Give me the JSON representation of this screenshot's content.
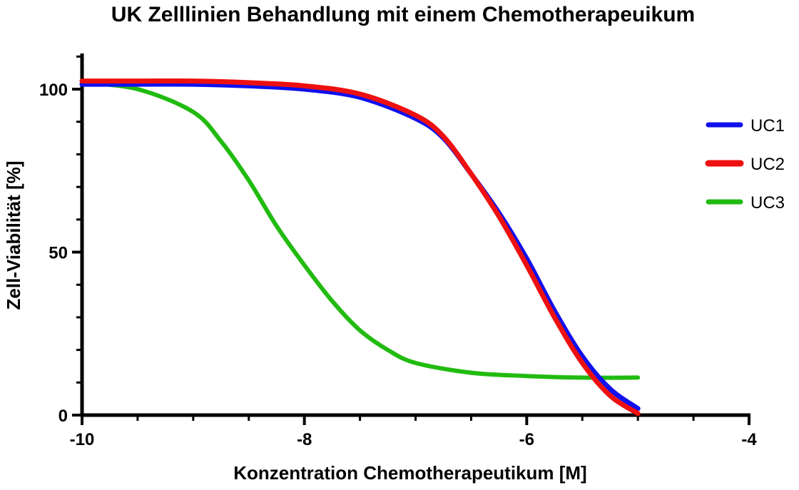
{
  "chart_data": {
    "type": "line",
    "title": "UK Zelllinien Behandlung mit einem Chemotherapeuikum",
    "xlabel": "Konzentration Chemotherapeutikum [M]",
    "ylabel": "Zell-Viabilität [%]",
    "xlim": [
      -10,
      -4
    ],
    "ylim": [
      0,
      110
    ],
    "xticks": [
      -10,
      -8,
      -6,
      -4
    ],
    "xtick_labels": [
      "-10",
      "-8",
      "-6",
      "-4"
    ],
    "yticks": [
      0,
      50,
      100
    ],
    "ytick_labels": [
      "0",
      "50",
      "100"
    ],
    "grid": false,
    "legend_position": "right",
    "series": [
      {
        "name": "UC1",
        "color": "#1010ee",
        "x": [
          -10,
          -9.5,
          -9,
          -8.5,
          -8,
          -7.5,
          -7,
          -6.75,
          -6.5,
          -6.25,
          -6,
          -5.75,
          -5.5,
          -5.25,
          -5
        ],
        "y": [
          101.5,
          101.5,
          101.5,
          101,
          100,
          97.5,
          91,
          85,
          74,
          62,
          48,
          32,
          18,
          8,
          2
        ]
      },
      {
        "name": "UC2",
        "color": "#ee1010",
        "x": [
          -10,
          -9.5,
          -9,
          -8.5,
          -8,
          -7.5,
          -7,
          -6.75,
          -6.5,
          -6.25,
          -6,
          -5.75,
          -5.5,
          -5.25,
          -5
        ],
        "y": [
          102.5,
          102.5,
          102.5,
          102,
          101,
          98.5,
          92,
          85.5,
          74,
          61,
          46,
          30,
          16,
          6,
          0.5
        ]
      },
      {
        "name": "UC3",
        "color": "#22bb11",
        "x": [
          -10,
          -9.5,
          -9,
          -8.75,
          -8.5,
          -8.25,
          -8,
          -7.75,
          -7.5,
          -7.25,
          -7,
          -6.5,
          -6,
          -5.5,
          -5
        ],
        "y": [
          102,
          100,
          93,
          84,
          72,
          58,
          46,
          35,
          26,
          20,
          16,
          13,
          12,
          11.5,
          11.5
        ]
      }
    ]
  }
}
